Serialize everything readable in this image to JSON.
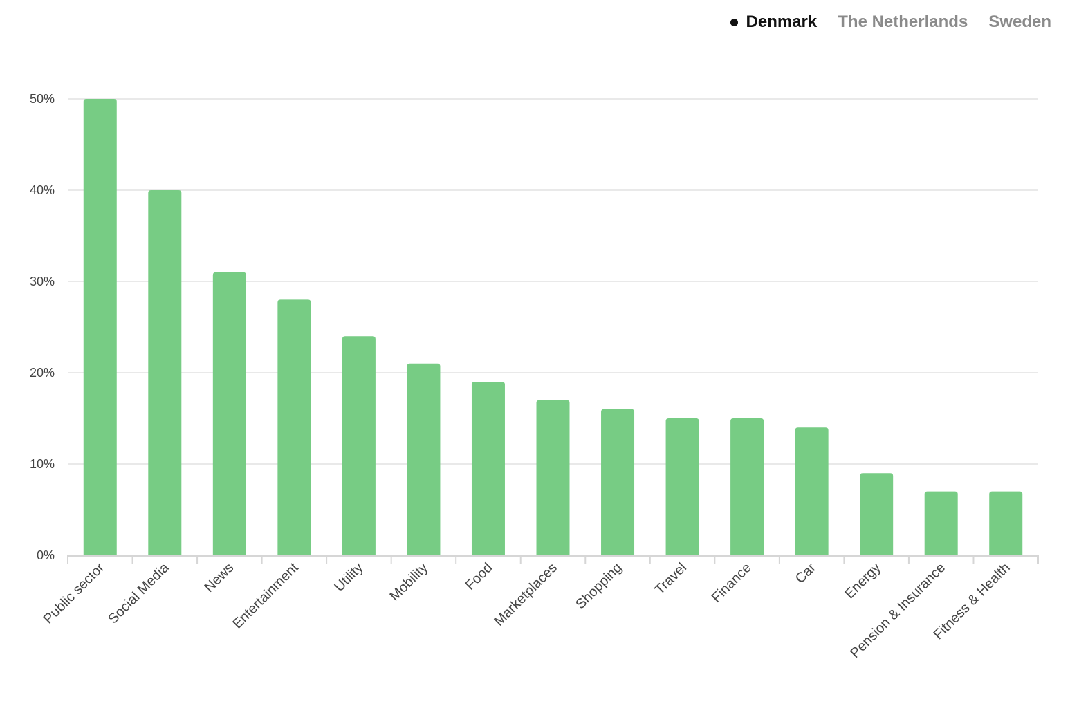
{
  "legend": {
    "items": [
      {
        "label": "Denmark",
        "active": true
      },
      {
        "label": "The Netherlands",
        "active": false
      },
      {
        "label": "Sweden",
        "active": false
      }
    ]
  },
  "chart_data": {
    "type": "bar",
    "title": "",
    "xlabel": "",
    "ylabel": "",
    "series_name": "Denmark",
    "categories": [
      "Public sector",
      "Social Media",
      "News",
      "Entertainment",
      "Utility",
      "Mobility",
      "Food",
      "Marketplaces",
      "Shopping",
      "Travel",
      "Finance",
      "Car",
      "Energy",
      "Pension & Insurance",
      "Fitness & Health"
    ],
    "values": [
      50,
      40,
      31,
      28,
      24,
      21,
      19,
      17,
      16,
      15,
      15,
      14,
      9,
      7,
      7
    ],
    "ylim": [
      0,
      50
    ],
    "yticks": [
      0,
      10,
      20,
      30,
      40,
      50
    ],
    "ytick_labels": [
      "0%",
      "10%",
      "20%",
      "30%",
      "40%",
      "50%"
    ],
    "grid": true,
    "legend_position": "top-right",
    "bar_color": "#77cc84"
  }
}
